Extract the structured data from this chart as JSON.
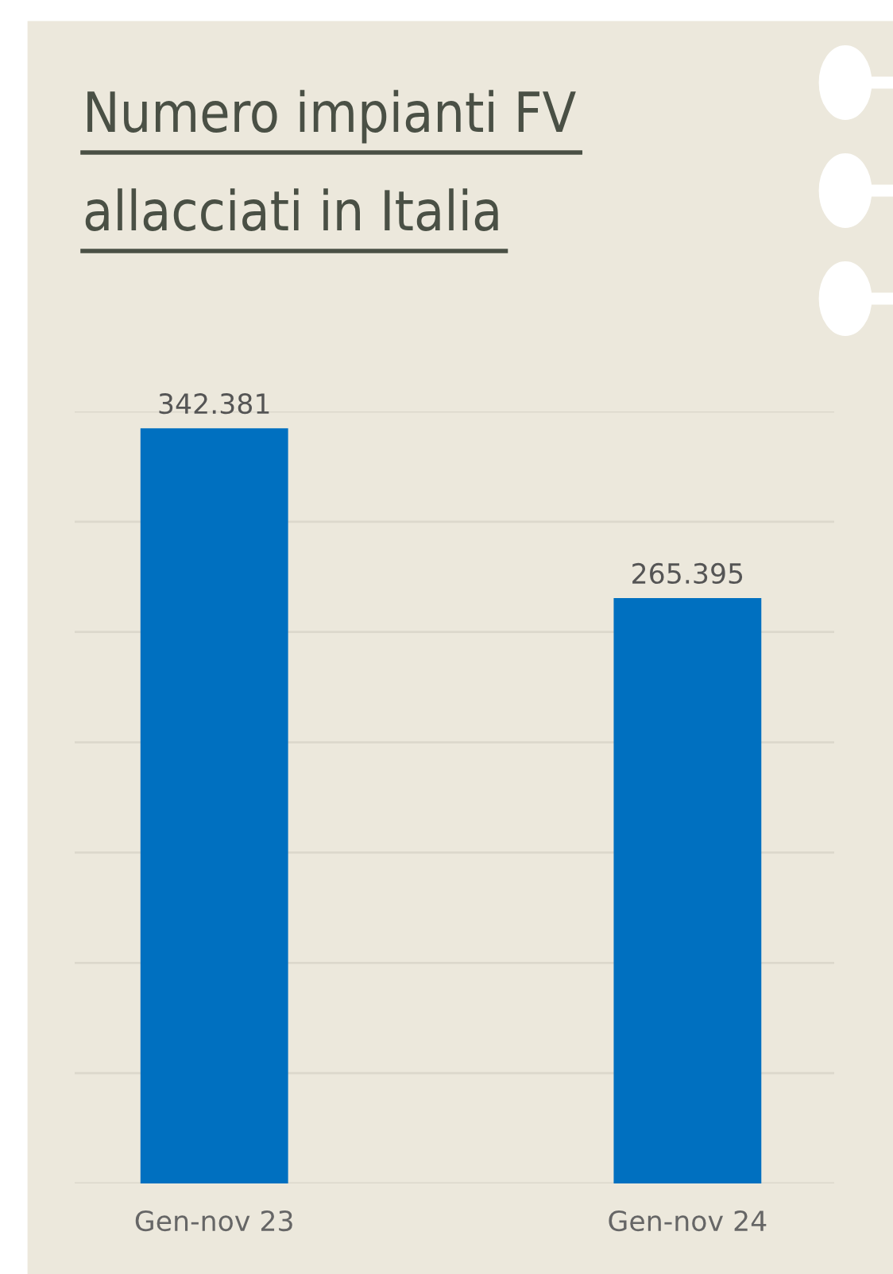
{
  "chart_data": {
    "type": "bar",
    "title": "Numero impianti FV\nallacciati in Italia",
    "categories": [
      "Gen-nov 23",
      "Gen-nov 24"
    ],
    "values": [
      342381,
      265395
    ],
    "value_labels": [
      "342.381",
      "265.395"
    ],
    "color": "#0070c0",
    "ylim": [
      0,
      350000
    ],
    "yticks": [
      {
        "value": 0,
        "label": null
      },
      {
        "value": 50000,
        "label": null
      },
      {
        "value": 100000,
        "label": null
      },
      {
        "value": 150000,
        "label": null
      },
      {
        "value": 200000,
        "label": null
      },
      {
        "value": 250000,
        "label": null
      },
      {
        "value": 300000,
        "label": null
      },
      {
        "value": 350000,
        "label": null
      }
    ],
    "tick_labels": "x",
    "grid": "y"
  }
}
